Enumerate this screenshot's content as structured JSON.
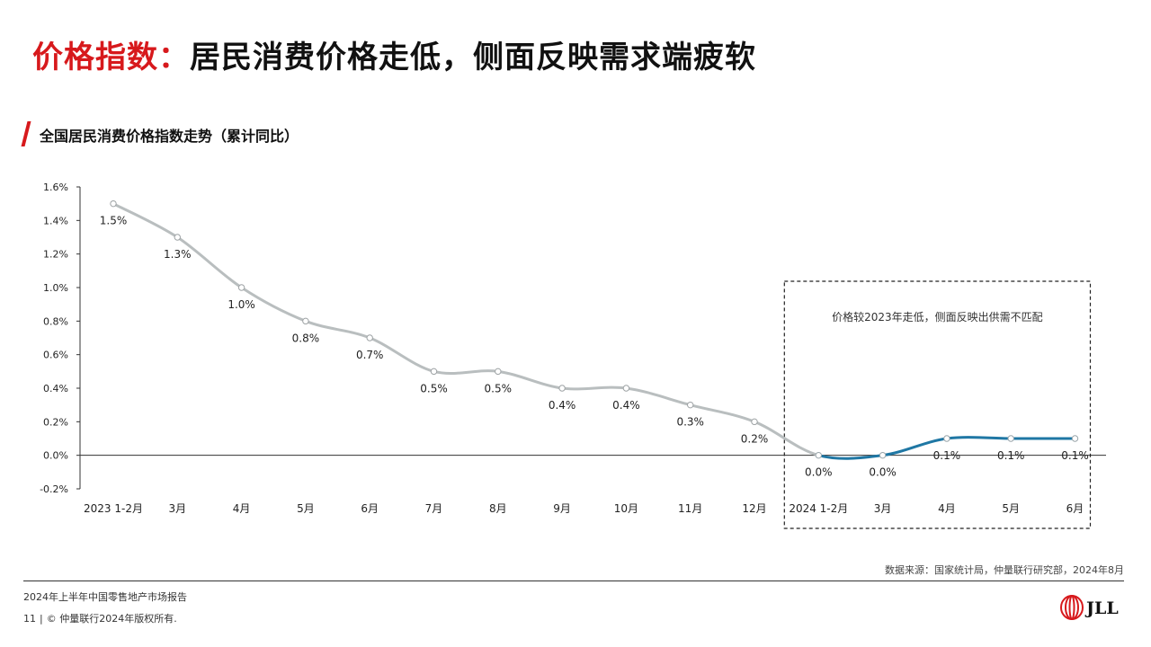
{
  "title": {
    "accent": "价格指数：",
    "main": "居民消费价格走低，侧面反映需求端疲软"
  },
  "chart_heading": "全国居民消费价格指数走势（累计同比）",
  "annotation": "价格较2023年走低，侧面反映出供需不匹配",
  "source": "数据来源：国家统计局，仲量联行研究部，2024年8月",
  "footer": {
    "report": "2024年上半年中国零售地产市场报告",
    "page_number": "11",
    "copyright": "© 仲量联行2024年版权所有."
  },
  "logo": {
    "text": "JLL"
  },
  "colors": {
    "accent": "#d7191c",
    "series_2023": "#b9bebf",
    "series_2024": "#1f77a4",
    "axis": "#333333"
  },
  "chart_data": {
    "type": "line",
    "categories": [
      "2023 1-2月",
      "3月",
      "4月",
      "5月",
      "6月",
      "7月",
      "8月",
      "9月",
      "10月",
      "11月",
      "12月",
      "2024 1-2月",
      "3月",
      "4月",
      "5月",
      "6月"
    ],
    "values": [
      1.5,
      1.3,
      1.0,
      0.8,
      0.7,
      0.5,
      0.5,
      0.4,
      0.4,
      0.3,
      0.2,
      0.0,
      0.0,
      0.1,
      0.1,
      0.1
    ],
    "data_labels": [
      "1.5%",
      "1.3%",
      "1.0%",
      "0.8%",
      "0.7%",
      "0.5%",
      "0.5%",
      "0.4%",
      "0.4%",
      "0.3%",
      "0.2%",
      "0.0%",
      "0.0%",
      "0.1%",
      "0.1%",
      "0.1%"
    ],
    "highlight_start_index": 11,
    "y_ticks": [
      -0.2,
      0.0,
      0.2,
      0.4,
      0.6,
      0.8,
      1.0,
      1.2,
      1.4,
      1.6
    ],
    "y_tick_labels": [
      "-0.2%",
      "0.0%",
      "0.2%",
      "0.4%",
      "0.6%",
      "0.8%",
      "1.0%",
      "1.2%",
      "1.4%",
      "1.6%"
    ],
    "ylim": [
      -0.2,
      1.6
    ],
    "unit": "%",
    "grid": false,
    "legend": "none",
    "smooth": true
  }
}
